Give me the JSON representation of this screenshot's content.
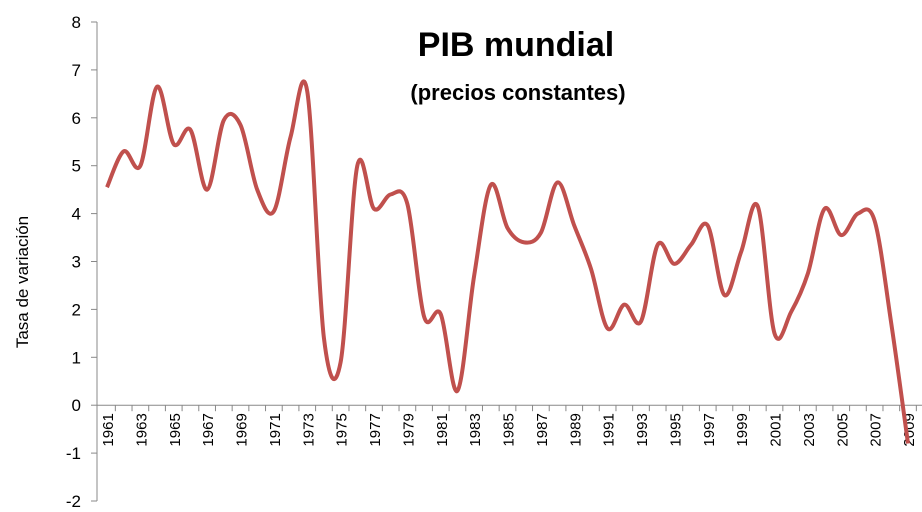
{
  "chart_data": {
    "type": "line",
    "title": "PIB mundial",
    "subtitle": "(precios constantes)",
    "y_label": "Tasa de variación",
    "categories": [
      "1961",
      null,
      "1963",
      null,
      "1965",
      null,
      "1967",
      null,
      "1969",
      null,
      "1971",
      null,
      "1973",
      null,
      "1975",
      null,
      "1977",
      null,
      "1979",
      null,
      "1981",
      null,
      "1983",
      null,
      "1985",
      null,
      "1987",
      null,
      "1989",
      null,
      "1991",
      null,
      "1993",
      null,
      "1995",
      null,
      "1997",
      null,
      "1999",
      null,
      "2001",
      null,
      "2003",
      null,
      "2005",
      null,
      "2007",
      null,
      "2009"
    ],
    "series": [
      {
        "name": "PIB mundial",
        "color": "#c0504d",
        "values": [
          4.55,
          5.3,
          5.0,
          6.65,
          5.45,
          5.75,
          4.5,
          5.95,
          5.85,
          4.5,
          4.05,
          5.6,
          6.55,
          1.4,
          0.9,
          5.0,
          4.1,
          4.4,
          4.2,
          1.85,
          1.9,
          0.3,
          2.7,
          4.6,
          3.7,
          3.4,
          3.6,
          4.65,
          3.75,
          2.85,
          1.6,
          2.1,
          1.75,
          3.35,
          2.95,
          3.35,
          3.75,
          2.3,
          3.2,
          4.15,
          1.5,
          1.95,
          2.75,
          4.1,
          3.55,
          4.0,
          3.85,
          1.7,
          -0.8
        ]
      }
    ],
    "ylim": [
      -2,
      8
    ],
    "yticks": [
      -2,
      -1,
      0,
      1,
      2,
      3,
      4,
      5,
      6,
      7,
      8
    ],
    "grid": false
  }
}
